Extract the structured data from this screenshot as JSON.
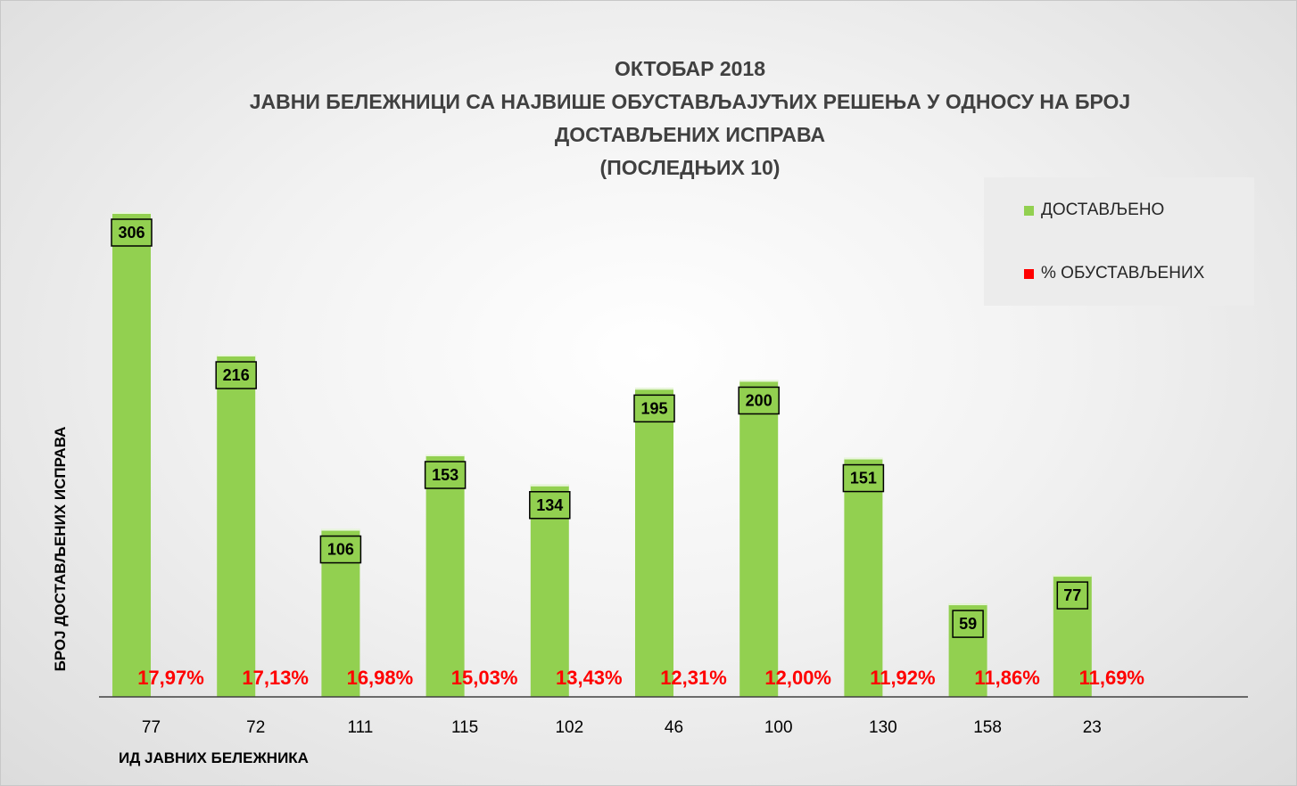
{
  "chart_data": {
    "type": "bar",
    "title_lines": [
      "ОКТОБАР 2018",
      "ЈАВНИ БЕЛЕЖНИЦИ СА НАЈВИШЕ ОБУСТАВЉАЈУЋИХ РЕШЕЊА У ОДНОСУ НА БРОЈ",
      "ДОСТАВЉЕНИХ ИСПРАВА",
      "(ПОСЛЕДЊИХ 10)"
    ],
    "xlabel": "ИД ЈАВНИХ БЕЛЕЖНИКА",
    "ylabel": "БРОЈ ДОСТАВЉЕНИХ ИСПРАВА",
    "categories": [
      "77",
      "72",
      "111",
      "115",
      "102",
      "46",
      "100",
      "130",
      "158",
      "23"
    ],
    "series": [
      {
        "name": "ДОСТАВЉЕНО",
        "color": "#92d050",
        "values": [
          306,
          216,
          106,
          153,
          134,
          195,
          200,
          151,
          59,
          77
        ],
        "labels": [
          "306",
          "216",
          "106",
          "153",
          "134",
          "195",
          "200",
          "151",
          "59",
          "77"
        ]
      },
      {
        "name": "% ОБУСТАВЉЕНИХ",
        "color": "#ff0000",
        "values": [
          17.97,
          17.13,
          16.98,
          15.03,
          13.43,
          12.31,
          12.0,
          11.92,
          11.86,
          11.69
        ],
        "labels": [
          "17,97%",
          "17,13%",
          "16,98%",
          "15,03%",
          "13,43%",
          "12,31%",
          "12,00%",
          "11,92%",
          "11,86%",
          "11,69%"
        ]
      }
    ],
    "ylim": [
      0,
      310
    ],
    "grid": false,
    "legend_position": "top-right"
  }
}
